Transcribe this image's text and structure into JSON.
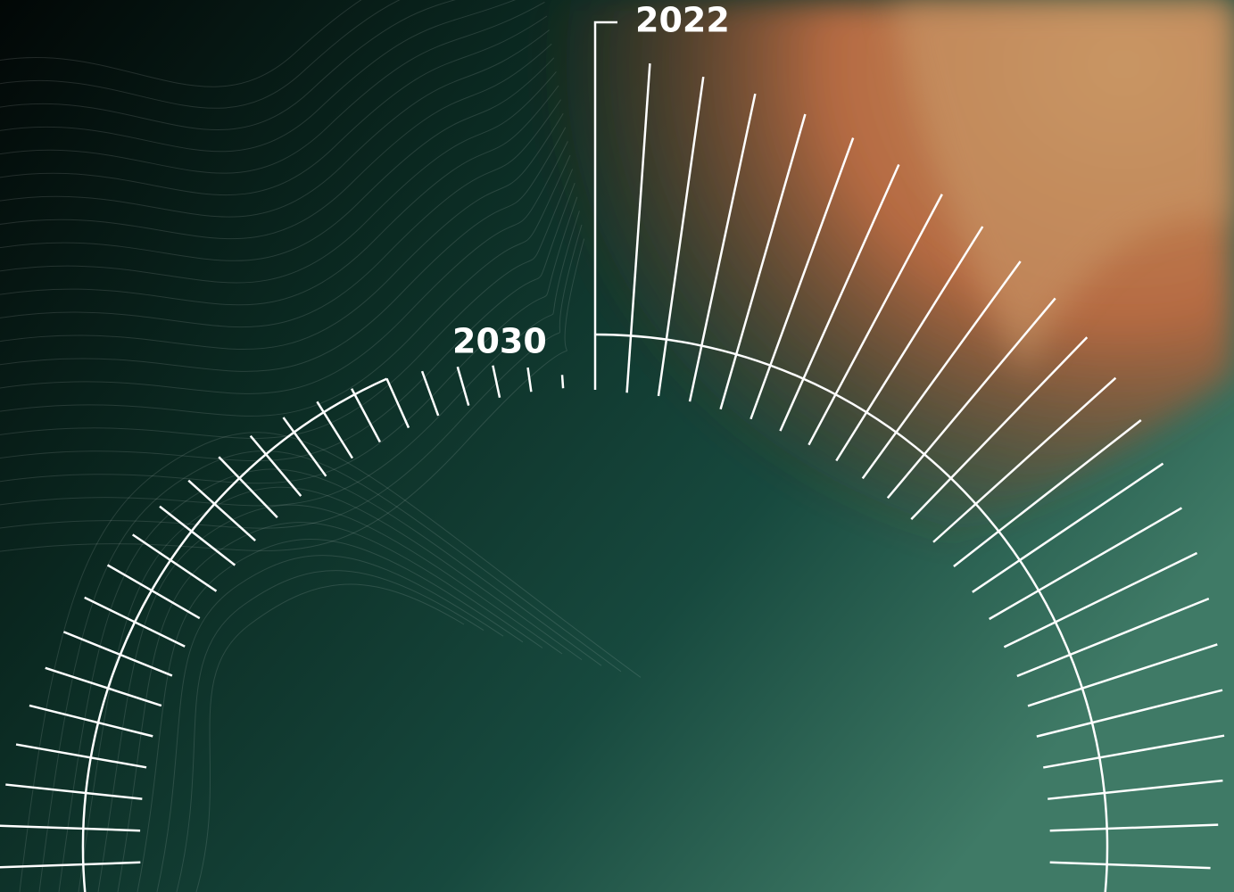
{
  "labels": {
    "start": "2022",
    "end": "2030"
  }
}
